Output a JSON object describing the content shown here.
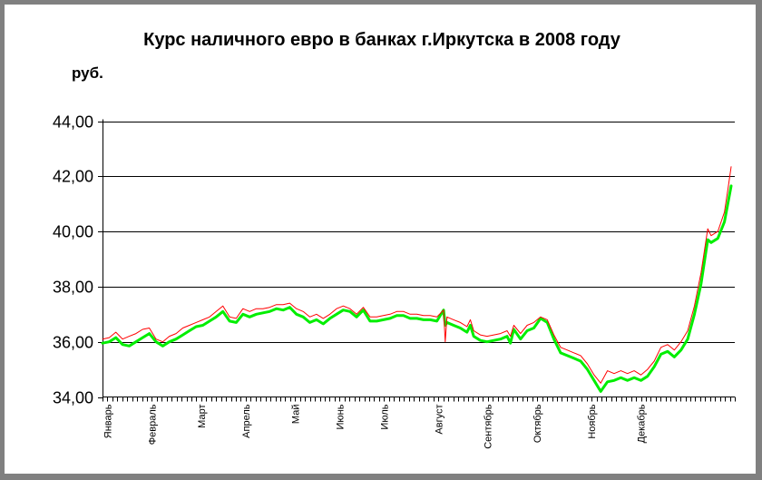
{
  "chart_data": {
    "type": "line",
    "title": "Курс наличного евро в банках г.Иркутска в 2008 году",
    "ylabel": "руб.",
    "ylim": [
      34,
      44
    ],
    "yticks": [
      "34,00",
      "36,00",
      "38,00",
      "40,00",
      "42,00",
      "44,00"
    ],
    "ytick_values": [
      34,
      36,
      38,
      40,
      42,
      44
    ],
    "grid": "horizontal",
    "month_labels": [
      "Январь",
      "Февраль",
      "Март",
      "Апрель",
      "Май",
      "Июнь",
      "Июль",
      "Август",
      "Сентябрь",
      "Октябрь",
      "Ноябрь",
      "Декабрь"
    ],
    "month_positions": [
      1,
      10,
      20,
      29,
      39,
      48,
      57,
      68,
      78,
      88,
      99,
      109
    ],
    "x_count": 128,
    "series": [
      {
        "color": "#ff0000",
        "width": 1,
        "points": [
          [
            1,
            36.1
          ],
          [
            3,
            36.15
          ],
          [
            5,
            36.35
          ],
          [
            7,
            36.1
          ],
          [
            9,
            36.2
          ],
          [
            11,
            36.3
          ],
          [
            13,
            36.45
          ],
          [
            15,
            36.5
          ],
          [
            17,
            36.1
          ],
          [
            19,
            36.0
          ],
          [
            21,
            36.2
          ],
          [
            23,
            36.3
          ],
          [
            25,
            36.5
          ],
          [
            27,
            36.6
          ],
          [
            29,
            36.7
          ],
          [
            31,
            36.8
          ],
          [
            33,
            36.9
          ],
          [
            35,
            37.1
          ],
          [
            37,
            37.3
          ],
          [
            39,
            36.9
          ],
          [
            41,
            36.85
          ],
          [
            43,
            37.2
          ],
          [
            45,
            37.1
          ],
          [
            47,
            37.2
          ],
          [
            49,
            37.2
          ],
          [
            51,
            37.25
          ],
          [
            53,
            37.35
          ],
          [
            55,
            37.35
          ],
          [
            57,
            37.4
          ],
          [
            59,
            37.2
          ],
          [
            61,
            37.1
          ],
          [
            63,
            36.9
          ],
          [
            65,
            37.0
          ],
          [
            67,
            36.85
          ],
          [
            69,
            37.0
          ],
          [
            71,
            37.2
          ],
          [
            73,
            37.3
          ],
          [
            75,
            37.2
          ],
          [
            77,
            37.0
          ],
          [
            79,
            37.25
          ],
          [
            81,
            36.9
          ],
          [
            83,
            36.9
          ],
          [
            85,
            36.95
          ],
          [
            87,
            37.0
          ],
          [
            89,
            37.1
          ],
          [
            91,
            37.1
          ],
          [
            93,
            37.0
          ],
          [
            95,
            37.0
          ],
          [
            97,
            36.95
          ],
          [
            99,
            36.95
          ],
          [
            101,
            36.9
          ],
          [
            103,
            37.15
          ],
          [
            103.5,
            36.0
          ],
          [
            104,
            36.9
          ],
          [
            106,
            36.8
          ],
          [
            108,
            36.7
          ],
          [
            110,
            36.55
          ],
          [
            111,
            36.8
          ],
          [
            112,
            36.4
          ],
          [
            114,
            36.25
          ],
          [
            116,
            36.2
          ],
          [
            118,
            36.25
          ],
          [
            120,
            36.3
          ],
          [
            122,
            36.4
          ],
          [
            123,
            36.2
          ],
          [
            124,
            36.6
          ],
          [
            126,
            36.3
          ],
          [
            128,
            36.6
          ],
          [
            130,
            36.7
          ],
          [
            132,
            36.9
          ],
          [
            134,
            36.8
          ],
          [
            136,
            36.25
          ],
          [
            138,
            35.8
          ],
          [
            140,
            35.7
          ],
          [
            142,
            35.6
          ],
          [
            144,
            35.5
          ],
          [
            146,
            35.2
          ],
          [
            148,
            34.8
          ],
          [
            150,
            34.5
          ],
          [
            152,
            34.95
          ],
          [
            154,
            34.85
          ],
          [
            156,
            34.95
          ],
          [
            158,
            34.85
          ],
          [
            160,
            34.95
          ],
          [
            162,
            34.8
          ],
          [
            164,
            35.0
          ],
          [
            166,
            35.3
          ],
          [
            168,
            35.8
          ],
          [
            170,
            35.9
          ],
          [
            172,
            35.7
          ],
          [
            174,
            36.0
          ],
          [
            176,
            36.4
          ],
          [
            178,
            37.3
          ],
          [
            180,
            38.5
          ],
          [
            182,
            40.1
          ],
          [
            183,
            39.85
          ],
          [
            185,
            40.0
          ],
          [
            187,
            40.7
          ],
          [
            188,
            41.5
          ],
          [
            189,
            42.35
          ]
        ]
      },
      {
        "color": "#00ee00",
        "width": 3,
        "points": [
          [
            1,
            35.95
          ],
          [
            3,
            36.0
          ],
          [
            5,
            36.15
          ],
          [
            7,
            35.9
          ],
          [
            9,
            35.85
          ],
          [
            11,
            36.0
          ],
          [
            13,
            36.15
          ],
          [
            15,
            36.3
          ],
          [
            17,
            36.0
          ],
          [
            19,
            35.85
          ],
          [
            21,
            36.0
          ],
          [
            23,
            36.1
          ],
          [
            25,
            36.25
          ],
          [
            27,
            36.4
          ],
          [
            29,
            36.55
          ],
          [
            31,
            36.6
          ],
          [
            33,
            36.75
          ],
          [
            35,
            36.9
          ],
          [
            37,
            37.1
          ],
          [
            39,
            36.75
          ],
          [
            41,
            36.7
          ],
          [
            43,
            37.0
          ],
          [
            45,
            36.9
          ],
          [
            47,
            37.0
          ],
          [
            49,
            37.05
          ],
          [
            51,
            37.1
          ],
          [
            53,
            37.2
          ],
          [
            55,
            37.15
          ],
          [
            57,
            37.25
          ],
          [
            59,
            37.0
          ],
          [
            61,
            36.9
          ],
          [
            63,
            36.7
          ],
          [
            65,
            36.8
          ],
          [
            67,
            36.65
          ],
          [
            69,
            36.85
          ],
          [
            71,
            37.0
          ],
          [
            73,
            37.15
          ],
          [
            75,
            37.1
          ],
          [
            77,
            36.9
          ],
          [
            79,
            37.15
          ],
          [
            81,
            36.75
          ],
          [
            83,
            36.75
          ],
          [
            85,
            36.8
          ],
          [
            87,
            36.85
          ],
          [
            89,
            36.95
          ],
          [
            91,
            36.95
          ],
          [
            93,
            36.85
          ],
          [
            95,
            36.85
          ],
          [
            97,
            36.8
          ],
          [
            99,
            36.8
          ],
          [
            101,
            36.75
          ],
          [
            103,
            37.15
          ],
          [
            103.5,
            36.6
          ],
          [
            104,
            36.7
          ],
          [
            106,
            36.6
          ],
          [
            108,
            36.5
          ],
          [
            110,
            36.35
          ],
          [
            111,
            36.6
          ],
          [
            112,
            36.2
          ],
          [
            114,
            36.05
          ],
          [
            116,
            36.0
          ],
          [
            118,
            36.05
          ],
          [
            120,
            36.1
          ],
          [
            122,
            36.2
          ],
          [
            123,
            35.95
          ],
          [
            124,
            36.45
          ],
          [
            126,
            36.1
          ],
          [
            128,
            36.4
          ],
          [
            130,
            36.5
          ],
          [
            132,
            36.85
          ],
          [
            134,
            36.7
          ],
          [
            136,
            36.1
          ],
          [
            138,
            35.6
          ],
          [
            140,
            35.5
          ],
          [
            142,
            35.4
          ],
          [
            144,
            35.3
          ],
          [
            146,
            35.0
          ],
          [
            148,
            34.6
          ],
          [
            150,
            34.2
          ],
          [
            152,
            34.55
          ],
          [
            154,
            34.6
          ],
          [
            156,
            34.7
          ],
          [
            158,
            34.6
          ],
          [
            160,
            34.7
          ],
          [
            162,
            34.6
          ],
          [
            164,
            34.75
          ],
          [
            166,
            35.1
          ],
          [
            168,
            35.55
          ],
          [
            170,
            35.65
          ],
          [
            172,
            35.45
          ],
          [
            174,
            35.7
          ],
          [
            176,
            36.1
          ],
          [
            178,
            37.0
          ],
          [
            180,
            38.1
          ],
          [
            182,
            39.7
          ],
          [
            183,
            39.6
          ],
          [
            185,
            39.75
          ],
          [
            187,
            40.35
          ],
          [
            188,
            41.0
          ],
          [
            189,
            41.65
          ]
        ]
      }
    ]
  }
}
